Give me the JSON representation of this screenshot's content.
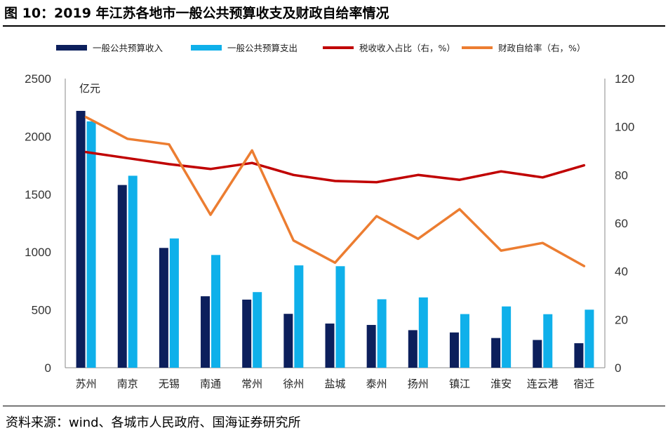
{
  "title": "图 10：2019 年江苏各地市一般公共预算收支及财政自给率情况",
  "source": "资料来源：wind、各城市人民政府、国海证券研究所",
  "chart_data": {
    "type": "bar",
    "unit_label": "亿元",
    "categories": [
      "苏州",
      "南京",
      "无锡",
      "南通",
      "常州",
      "徐州",
      "盐城",
      "泰州",
      "扬州",
      "镇江",
      "淮安",
      "连云港",
      "宿迁"
    ],
    "series": [
      {
        "name": "一般公共预算收入",
        "type": "bar",
        "axis": "left",
        "color": "#0c1f5c",
        "values": [
          2221,
          1580,
          1036,
          618,
          589,
          466,
          382,
          370,
          325,
          305,
          257,
          240,
          212
        ]
      },
      {
        "name": "一般公共预算支出",
        "type": "bar",
        "axis": "left",
        "color": "#0fb0ea",
        "values": [
          2130,
          1660,
          1118,
          975,
          654,
          885,
          878,
          592,
          608,
          464,
          530,
          463,
          502
        ]
      },
      {
        "name": "税收收入占比（右，%）",
        "type": "line",
        "axis": "right",
        "color": "#c00000",
        "values": [
          89.5,
          87.0,
          84.5,
          82.5,
          85.0,
          80.0,
          77.5,
          77.0,
          80.0,
          78.0,
          81.5,
          79.0,
          84.0
        ]
      },
      {
        "name": "财政自给率（右，%）",
        "type": "line",
        "axis": "right",
        "color": "#ec7d31",
        "values": [
          104.0,
          95.0,
          92.7,
          63.5,
          90.2,
          52.8,
          43.6,
          62.9,
          53.5,
          65.8,
          48.6,
          51.8,
          42.2
        ]
      }
    ],
    "y_left": {
      "min": 0,
      "max": 2500,
      "ticks": [
        "0",
        "500",
        "1000",
        "1500",
        "2000",
        "2500"
      ]
    },
    "y_right": {
      "min": 0,
      "max": 120,
      "ticks": [
        "0",
        "20",
        "40",
        "60",
        "80",
        "100",
        "120"
      ]
    },
    "legend_position": "top",
    "grid": false
  }
}
